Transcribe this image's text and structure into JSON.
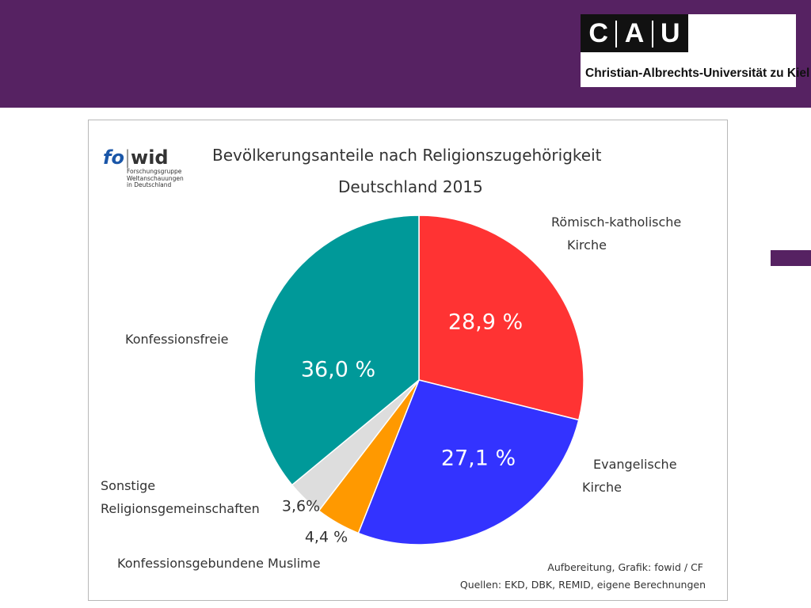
{
  "header": {
    "logo": {
      "letters": [
        "C",
        "A",
        "U"
      ],
      "name": "Christian-Albrechts-Universität zu Kiel"
    }
  },
  "fowid": {
    "fo": "fo",
    "wid": "wid",
    "subtitle_lines": [
      "Forschungsgruppe",
      "Weltanschauungen",
      "in Deutschland"
    ]
  },
  "chart_data": {
    "type": "pie",
    "title": "Bevölkerungsanteile nach Religionszugehörigkeit",
    "subtitle": "Deutschland 2015",
    "slices": [
      {
        "label_lines": [
          "Römisch-katholische",
          "Kirche"
        ],
        "value": 28.9,
        "value_label": "28,9 %",
        "color": "#ff3333"
      },
      {
        "label_lines": [
          "Evangelische",
          "Kirche"
        ],
        "value": 27.1,
        "value_label": "27,1 %",
        "color": "#3333ff"
      },
      {
        "label_lines": [
          "Konfessionsgebundene Muslime"
        ],
        "value": 4.4,
        "value_label": "4,4 %",
        "color": "#ff9900"
      },
      {
        "label_lines": [
          "Sonstige",
          "Religionsgemeinschaften"
        ],
        "value": 3.6,
        "value_label": "3,6%",
        "color": "#dddddd"
      },
      {
        "label_lines": [
          "Konfessionsfreie"
        ],
        "value": 36.0,
        "value_label": "36,0 %",
        "color": "#009999"
      }
    ],
    "start_angle": "12 o'clock",
    "direction": "clockwise",
    "source_lines": [
      "Aufbereitung, Grafik: fowid / CF",
      "Quellen: EKD, DBK, REMID,  eigene Berechnungen"
    ]
  }
}
